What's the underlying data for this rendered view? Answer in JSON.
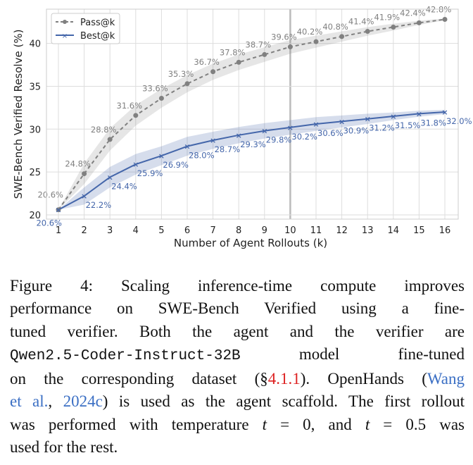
{
  "chart_data": {
    "type": "line",
    "xlabel": "Number of Agent Rollouts (k)",
    "ylabel": "SWE-Bench Verified Resolve (%)",
    "x": [
      1,
      2,
      3,
      4,
      5,
      6,
      7,
      8,
      9,
      10,
      11,
      12,
      13,
      14,
      15,
      16
    ],
    "xlim": [
      0.5,
      16.5
    ],
    "ylim": [
      19.5,
      43.5
    ],
    "yticks": [
      20,
      25,
      30,
      35,
      40
    ],
    "grid": true,
    "highlight_x": 10,
    "legend": "top-left",
    "series": [
      {
        "name": "Pass@k",
        "color": "#808080",
        "style": "dashed",
        "marker": "circle",
        "values": [
          20.6,
          24.8,
          28.8,
          31.6,
          33.6,
          35.3,
          36.7,
          37.8,
          38.7,
          39.6,
          40.2,
          40.8,
          41.4,
          41.9,
          42.4,
          42.8
        ],
        "labels": [
          "20.6%",
          "24.8%",
          "28.8%",
          "31.6%",
          "33.6%",
          "35.3%",
          "36.7%",
          "37.8%",
          "38.7%",
          "39.6%",
          "40.2%",
          "40.8%",
          "41.4%",
          "41.9%",
          "42.4%",
          "42.8%"
        ],
        "band_halfwidth": [
          0,
          1.2,
          1.3,
          1.2,
          1.1,
          1.0,
          0.95,
          0.9,
          0.85,
          0.8,
          0.7,
          0.6,
          0.5,
          0.4,
          0.25,
          0.1
        ]
      },
      {
        "name": "Best@k",
        "color": "#4466aa",
        "style": "solid",
        "marker": "x",
        "values": [
          20.6,
          22.2,
          24.4,
          25.9,
          26.9,
          28.0,
          28.7,
          29.3,
          29.8,
          30.2,
          30.6,
          30.9,
          31.2,
          31.5,
          31.8,
          32.0
        ],
        "labels": [
          "20.6%",
          "22.2%",
          "24.4%",
          "25.9%",
          "26.9%",
          "28.0%",
          "28.7%",
          "29.3%",
          "29.8%",
          "30.2%",
          "30.6%",
          "30.9%",
          "31.2%",
          "31.5%",
          "31.8%",
          "32.0%"
        ],
        "band_halfwidth": [
          0,
          1.0,
          1.2,
          1.2,
          1.1,
          1.1,
          1.0,
          0.95,
          0.9,
          0.85,
          0.8,
          0.7,
          0.6,
          0.45,
          0.35,
          0.25
        ]
      }
    ]
  },
  "caption": {
    "l1": "Figure 4:  Scaling inference-time compute improves",
    "l2": "performance on SWE-Bench Verified using a fine-",
    "l3a": "tuned verifier.  Both the agent and the verifier are",
    "l4a": "Qwen2.5-Coder-Instruct-32B",
    "l4b": " model fine-tuned",
    "l5a": "on the corresponding dataset (§",
    "l5b": "4.1.1",
    "l5c": "). OpenHands (",
    "l5d": "Wang",
    "l6a": "et al.",
    "l6b": ", ",
    "l6c": "2024c",
    "l6d": ") is used as the agent scaffold. The first rollout",
    "l7a": "was performed with temperature ",
    "l7b": "t",
    "l7c": " = 0, and ",
    "l7d": "t",
    "l7e": " = 0.5 was",
    "l8": "used for the rest."
  }
}
